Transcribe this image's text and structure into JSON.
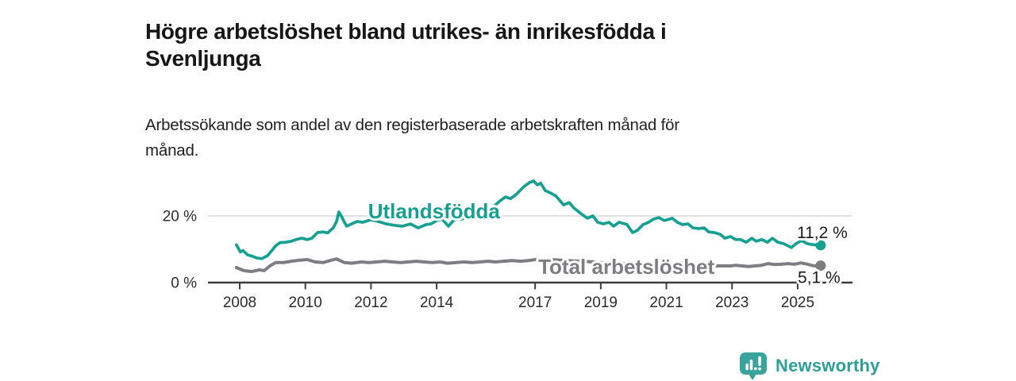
{
  "header": {
    "title": "Högre arbetslöshet bland utrikes- än inrikesfödda i Svenljunga",
    "subtitle": "Arbetssökande som andel av den registerbaserade arbetskraften månad för månad."
  },
  "footer": {
    "brand": "Newsworthy"
  },
  "colors": {
    "accent_teal": "#16a091",
    "line_gray": "#7d7d82",
    "logo_teal": "#3aa39b",
    "brand_text_teal": "#2f9e97"
  },
  "chart_data": {
    "type": "line",
    "title": "Högre arbetslöshet bland utrikes- än inrikesfödda i Svenljunga",
    "subtitle": "Arbetssökande som andel av den registerbaserade arbetskraften månad för månad.",
    "xlabel": "",
    "ylabel": "",
    "grid": "only horizontal gridline at 20 %",
    "legend_position": "inline labels on lines",
    "x_range_years": [
      2007.0,
      2026.7
    ],
    "ylim": [
      0,
      33
    ],
    "x_ticks": [
      2008,
      2010,
      2012,
      2014,
      2017,
      2019,
      2021,
      2023,
      2025
    ],
    "y_ticks": [
      {
        "value": 0,
        "label": "0 %"
      },
      {
        "value": 20,
        "label": "20 %"
      }
    ],
    "axis_color": "#3d3d3d",
    "grid_color": "#d9d9d9",
    "tick_label_color": "#2b2b2b",
    "value_label_color": "#1c1c1c",
    "series": [
      {
        "name": "Utlandsfödda",
        "color": "#16a091",
        "stroke_width": 3.7,
        "end_value": 11.2,
        "end_label": "11,2 %",
        "end_label_dx": 2,
        "end_label_dy": -9,
        "label_anchor": {
          "year": 2013.92,
          "baseline_value": 19.3
        },
        "points": [
          [
            2007.9,
            11.3
          ],
          [
            2008.02,
            9.2
          ],
          [
            2008.1,
            9.6
          ],
          [
            2008.24,
            8.3
          ],
          [
            2008.39,
            7.9
          ],
          [
            2008.51,
            7.4
          ],
          [
            2008.68,
            7.2
          ],
          [
            2008.85,
            8.1
          ],
          [
            2008.97,
            9.5
          ],
          [
            2009.09,
            11.0
          ],
          [
            2009.23,
            12.0
          ],
          [
            2009.4,
            12.1
          ],
          [
            2009.57,
            12.4
          ],
          [
            2009.72,
            12.9
          ],
          [
            2009.89,
            13.3
          ],
          [
            2010.06,
            12.9
          ],
          [
            2010.2,
            13.3
          ],
          [
            2010.37,
            15.0
          ],
          [
            2010.54,
            15.2
          ],
          [
            2010.68,
            14.9
          ],
          [
            2010.85,
            16.4
          ],
          [
            2010.95,
            18.3
          ],
          [
            2011.02,
            21.2
          ],
          [
            2011.12,
            19.5
          ],
          [
            2011.19,
            18.1
          ],
          [
            2011.26,
            16.9
          ],
          [
            2011.41,
            17.6
          ],
          [
            2011.58,
            18.3
          ],
          [
            2011.75,
            18.1
          ],
          [
            2011.99,
            18.8
          ],
          [
            2012.23,
            18.3
          ],
          [
            2012.47,
            17.6
          ],
          [
            2012.71,
            17.2
          ],
          [
            2012.96,
            16.9
          ],
          [
            2013.2,
            17.6
          ],
          [
            2013.44,
            16.4
          ],
          [
            2013.68,
            17.4
          ],
          [
            2013.83,
            17.6
          ],
          [
            2014.0,
            18.6
          ],
          [
            2014.17,
            19.0
          ],
          [
            2014.36,
            16.9
          ],
          [
            2014.53,
            18.8
          ],
          [
            2014.72,
            19.0
          ],
          [
            2014.96,
            19.5
          ],
          [
            2015.21,
            20.2
          ],
          [
            2015.45,
            21.4
          ],
          [
            2015.69,
            22.4
          ],
          [
            2015.93,
            24.5
          ],
          [
            2016.1,
            25.7
          ],
          [
            2016.25,
            25.2
          ],
          [
            2016.42,
            26.4
          ],
          [
            2016.66,
            28.8
          ],
          [
            2016.83,
            30.0
          ],
          [
            2016.95,
            30.5
          ],
          [
            2017.07,
            29.3
          ],
          [
            2017.17,
            29.8
          ],
          [
            2017.31,
            27.6
          ],
          [
            2017.46,
            26.9
          ],
          [
            2017.63,
            26.0
          ],
          [
            2017.87,
            23.3
          ],
          [
            2018.04,
            24.0
          ],
          [
            2018.18,
            22.4
          ],
          [
            2018.42,
            20.5
          ],
          [
            2018.59,
            19.3
          ],
          [
            2018.76,
            20.0
          ],
          [
            2018.91,
            18.1
          ],
          [
            2019.08,
            17.6
          ],
          [
            2019.25,
            18.1
          ],
          [
            2019.39,
            16.9
          ],
          [
            2019.56,
            18.1
          ],
          [
            2019.8,
            17.4
          ],
          [
            2019.97,
            15.0
          ],
          [
            2020.12,
            15.7
          ],
          [
            2020.29,
            17.4
          ],
          [
            2020.46,
            18.1
          ],
          [
            2020.6,
            19.0
          ],
          [
            2020.77,
            19.5
          ],
          [
            2020.94,
            18.6
          ],
          [
            2021.08,
            19.0
          ],
          [
            2021.18,
            19.3
          ],
          [
            2021.33,
            18.1
          ],
          [
            2021.49,
            17.4
          ],
          [
            2021.66,
            17.6
          ],
          [
            2021.81,
            16.4
          ],
          [
            2021.98,
            16.2
          ],
          [
            2022.15,
            16.4
          ],
          [
            2022.29,
            15.2
          ],
          [
            2022.46,
            15.0
          ],
          [
            2022.63,
            14.5
          ],
          [
            2022.78,
            13.3
          ],
          [
            2022.95,
            13.8
          ],
          [
            2023.11,
            12.9
          ],
          [
            2023.26,
            12.9
          ],
          [
            2023.43,
            12.1
          ],
          [
            2023.6,
            13.3
          ],
          [
            2023.74,
            12.4
          ],
          [
            2023.91,
            12.9
          ],
          [
            2024.08,
            12.1
          ],
          [
            2024.23,
            13.3
          ],
          [
            2024.4,
            12.1
          ],
          [
            2024.57,
            11.7
          ],
          [
            2024.71,
            11.0
          ],
          [
            2024.81,
            10.5
          ],
          [
            2024.95,
            11.7
          ],
          [
            2025.12,
            12.6
          ],
          [
            2025.29,
            11.7
          ],
          [
            2025.44,
            11.4
          ],
          [
            2025.61,
            11.2
          ],
          [
            2025.7,
            11.2
          ]
        ]
      },
      {
        "name": "Total arbetslöshet",
        "color": "#7d7d82",
        "stroke_width": 4,
        "end_value": 5.1,
        "end_label": "5,1 %",
        "end_label_dx": -2,
        "end_label_dy": 22,
        "label_anchor": {
          "year": 2019.78,
          "baseline_value": 2.6
        },
        "points": [
          [
            2007.9,
            4.5
          ],
          [
            2008.12,
            3.6
          ],
          [
            2008.36,
            3.3
          ],
          [
            2008.6,
            3.8
          ],
          [
            2008.75,
            3.6
          ],
          [
            2008.92,
            5.0
          ],
          [
            2009.09,
            6.0
          ],
          [
            2009.33,
            6.0
          ],
          [
            2009.57,
            6.4
          ],
          [
            2009.81,
            6.7
          ],
          [
            2010.06,
            6.9
          ],
          [
            2010.3,
            6.2
          ],
          [
            2010.54,
            6.0
          ],
          [
            2010.78,
            6.7
          ],
          [
            2010.95,
            7.1
          ],
          [
            2011.19,
            6.0
          ],
          [
            2011.41,
            5.8
          ],
          [
            2011.7,
            6.2
          ],
          [
            2011.94,
            6.0
          ],
          [
            2012.18,
            6.2
          ],
          [
            2012.42,
            6.4
          ],
          [
            2012.66,
            6.2
          ],
          [
            2012.9,
            6.0
          ],
          [
            2013.14,
            6.2
          ],
          [
            2013.38,
            6.4
          ],
          [
            2013.62,
            6.2
          ],
          [
            2013.86,
            6.0
          ],
          [
            2014.1,
            6.2
          ],
          [
            2014.34,
            5.8
          ],
          [
            2014.6,
            6.0
          ],
          [
            2014.84,
            6.2
          ],
          [
            2015.08,
            6.0
          ],
          [
            2015.32,
            6.2
          ],
          [
            2015.56,
            6.4
          ],
          [
            2015.8,
            6.2
          ],
          [
            2016.04,
            6.4
          ],
          [
            2016.3,
            6.6
          ],
          [
            2016.56,
            6.4
          ],
          [
            2016.8,
            6.6
          ],
          [
            2017.0,
            6.9
          ],
          [
            2017.25,
            6.7
          ],
          [
            2017.5,
            6.9
          ],
          [
            2017.8,
            6.7
          ],
          [
            2018.2,
            6.5
          ],
          [
            2018.6,
            6.3
          ],
          [
            2019.0,
            6.0
          ],
          [
            2019.4,
            5.8
          ],
          [
            2019.8,
            5.6
          ],
          [
            2020.2,
            5.8
          ],
          [
            2020.6,
            5.6
          ],
          [
            2021.0,
            5.4
          ],
          [
            2021.4,
            5.2
          ],
          [
            2021.8,
            5.1
          ],
          [
            2022.2,
            5.0
          ],
          [
            2022.6,
            5.0
          ],
          [
            2022.95,
            5.0
          ],
          [
            2023.11,
            5.2
          ],
          [
            2023.3,
            5.0
          ],
          [
            2023.5,
            4.8
          ],
          [
            2023.7,
            5.0
          ],
          [
            2023.9,
            5.2
          ],
          [
            2024.1,
            5.7
          ],
          [
            2024.3,
            5.4
          ],
          [
            2024.5,
            5.5
          ],
          [
            2024.7,
            5.7
          ],
          [
            2024.9,
            5.5
          ],
          [
            2025.1,
            5.9
          ],
          [
            2025.3,
            5.5
          ],
          [
            2025.5,
            5.0
          ],
          [
            2025.7,
            5.1
          ]
        ]
      }
    ]
  }
}
